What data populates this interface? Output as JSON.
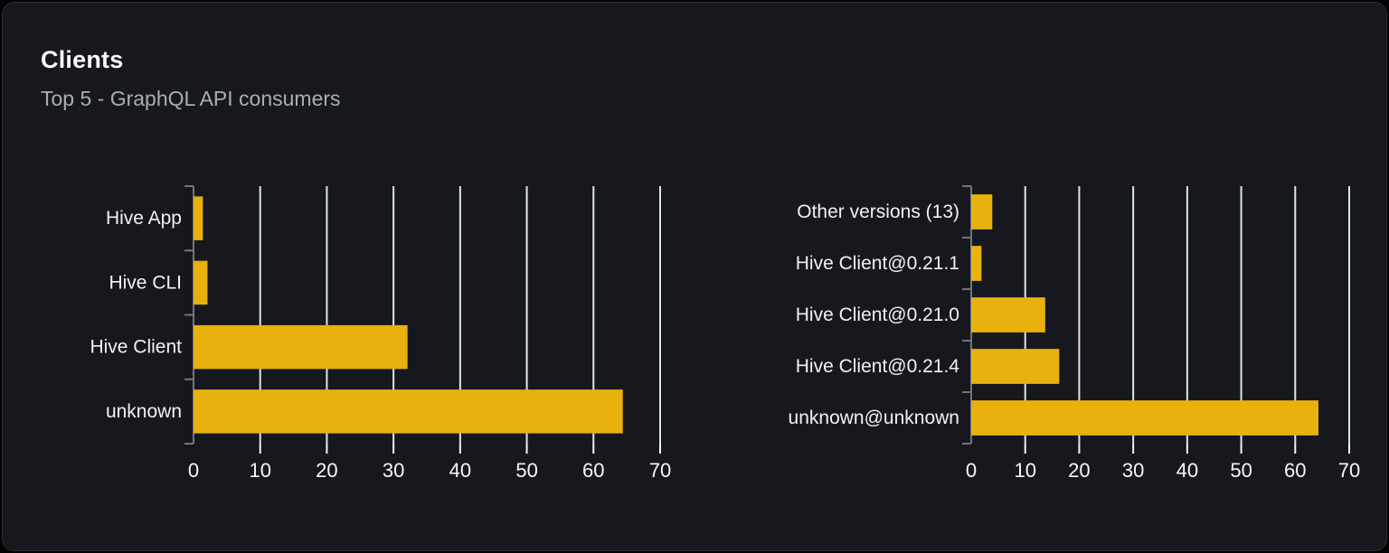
{
  "card": {
    "title": "Clients",
    "subtitle": "Top 5 - GraphQL API consumers"
  },
  "chart_data": [
    {
      "type": "bar",
      "orientation": "horizontal",
      "title": "",
      "categories": [
        "Hive App",
        "Hive CLI",
        "Hive Client",
        "unknown"
      ],
      "values": [
        1.4,
        2.1,
        32.1,
        64.4
      ],
      "xlabel": "",
      "ylabel": "",
      "xlim": [
        0,
        70
      ],
      "xticks": [
        0,
        10,
        20,
        30,
        40,
        50,
        60,
        70
      ],
      "grid": true,
      "legend": false
    },
    {
      "type": "bar",
      "orientation": "horizontal",
      "title": "",
      "categories": [
        "Other versions (13)",
        "Hive Client@0.21.1",
        "Hive Client@0.21.0",
        "Hive Client@0.21.4",
        "unknown@unknown"
      ],
      "values": [
        3.9,
        1.9,
        13.7,
        16.3,
        64.3
      ],
      "xlabel": "",
      "ylabel": "",
      "xlim": [
        0,
        70
      ],
      "xticks": [
        0,
        10,
        20,
        30,
        40,
        50,
        60,
        70
      ],
      "grid": true,
      "legend": false
    }
  ],
  "theme": {
    "bar_color": "#e9b10d",
    "grid_color": "#dfe4ee",
    "axis_color": "#73757d",
    "tick_color": "#f2f4f8",
    "tick_label_color": "#f7f7f8",
    "category_label_color": "#f2f2f4",
    "title_color": "#fafafa",
    "subtitle_color": "#a9aeb6",
    "card_background": "#16181d",
    "card_border": "#2a2d34",
    "page_background": "#030304"
  }
}
